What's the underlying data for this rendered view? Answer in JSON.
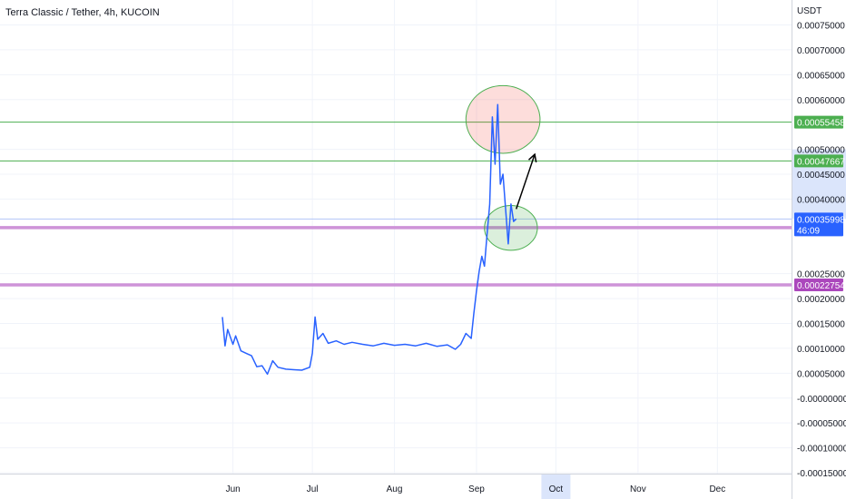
{
  "chart_data": {
    "type": "line",
    "title": "Terra Classic / Tether, 4h, KUCOIN",
    "currency_label": "USDT",
    "y_range": [
      -0.00015,
      0.00075
    ],
    "y_ticks": [
      "0.00075000",
      "0.00070000",
      "0.00065000",
      "0.00060000",
      "0.00050000",
      "0.00045000",
      "0.00040000",
      "0.00025000",
      "0.00020000",
      "0.00015000",
      "0.00010000",
      "0.00005000",
      "-0.00000000",
      "-0.00005000",
      "-0.00010000",
      "-0.00015000"
    ],
    "y_tick_values": [
      0.00075,
      0.0007,
      0.00065,
      0.0006,
      0.0005,
      0.00045,
      0.0004,
      0.00025,
      0.0002,
      0.00015,
      0.0001,
      5e-05,
      0,
      -5e-05,
      -0.0001,
      -0.00015
    ],
    "x_ticks": [
      "Jun",
      "Jul",
      "Aug",
      "Sep",
      "Oct",
      "Nov",
      "Dec"
    ],
    "x_tick_dates": [
      "2022-06-01",
      "2022-07-01",
      "2022-08-01",
      "2022-09-01",
      "2022-10-01",
      "2022-11-01",
      "2022-12-01"
    ],
    "x_range": [
      "2022-03-05",
      "2022-12-29"
    ],
    "x_highlight": "Oct",
    "series": [
      {
        "color": "#2962ff",
        "points": [
          [
            "2022-05-28",
            0.000163
          ],
          [
            "2022-05-29",
            0.000105
          ],
          [
            "2022-05-30",
            0.000138
          ],
          [
            "2022-06-01",
            0.000108
          ],
          [
            "2022-06-02",
            0.000125
          ],
          [
            "2022-06-04",
            9.5e-05
          ],
          [
            "2022-06-06",
            9e-05
          ],
          [
            "2022-06-08",
            8.5e-05
          ],
          [
            "2022-06-10",
            6.3e-05
          ],
          [
            "2022-06-12",
            6.5e-05
          ],
          [
            "2022-06-14",
            4.8e-05
          ],
          [
            "2022-06-16",
            7.5e-05
          ],
          [
            "2022-06-18",
            6.2e-05
          ],
          [
            "2022-06-21",
            5.8e-05
          ],
          [
            "2022-06-24",
            5.7e-05
          ],
          [
            "2022-06-27",
            5.6e-05
          ],
          [
            "2022-06-30",
            6.2e-05
          ],
          [
            "2022-07-01",
            9e-05
          ],
          [
            "2022-07-02",
            0.000163
          ],
          [
            "2022-07-03",
            0.000118
          ],
          [
            "2022-07-05",
            0.00013
          ],
          [
            "2022-07-07",
            0.00011
          ],
          [
            "2022-07-10",
            0.000115
          ],
          [
            "2022-07-13",
            0.000108
          ],
          [
            "2022-07-16",
            0.000112
          ],
          [
            "2022-07-20",
            0.000108
          ],
          [
            "2022-07-24",
            0.000105
          ],
          [
            "2022-07-28",
            0.00011
          ],
          [
            "2022-08-01",
            0.000106
          ],
          [
            "2022-08-05",
            0.000108
          ],
          [
            "2022-08-09",
            0.000105
          ],
          [
            "2022-08-13",
            0.00011
          ],
          [
            "2022-08-17",
            0.000104
          ],
          [
            "2022-08-21",
            0.000107
          ],
          [
            "2022-08-24",
            9.8e-05
          ],
          [
            "2022-08-26",
            0.000108
          ],
          [
            "2022-08-28",
            0.00013
          ],
          [
            "2022-08-30",
            0.00012
          ],
          [
            "2022-08-31",
            0.00017
          ],
          [
            "2022-09-01",
            0.000215
          ],
          [
            "2022-09-02",
            0.000255
          ],
          [
            "2022-09-03",
            0.000285
          ],
          [
            "2022-09-04",
            0.000265
          ],
          [
            "2022-09-05",
            0.00033
          ],
          [
            "2022-09-06",
            0.00039
          ],
          [
            "2022-09-07",
            0.000565
          ],
          [
            "2022-09-08",
            0.00047
          ],
          [
            "2022-09-09",
            0.00059
          ],
          [
            "2022-09-10",
            0.00043
          ],
          [
            "2022-09-11",
            0.00045
          ],
          [
            "2022-09-12",
            0.00038
          ],
          [
            "2022-09-13",
            0.00031
          ],
          [
            "2022-09-14",
            0.00039
          ],
          [
            "2022-09-15",
            0.000355
          ],
          [
            "2022-09-16",
            0.00036
          ]
        ]
      }
    ],
    "price_levels": [
      {
        "label": "0.00055458",
        "value": 0.00055458,
        "line_color": "#4caf50",
        "tag_color": "#4caf50"
      },
      {
        "label": "0.00047667",
        "value": 0.00047667,
        "line_color": "#4caf50",
        "tag_color": "#4caf50"
      },
      {
        "label": "0.00034264",
        "value": 0.00034264,
        "line_color": "#ce93d8",
        "tag_color": "#ab47bc",
        "thick": true
      },
      {
        "label": "0.00022754",
        "value": 0.00022754,
        "line_color": "#ce93d8",
        "tag_color": "#ab47bc",
        "thick": true
      }
    ],
    "last_price": {
      "label": "0.00035998",
      "countdown": "46:09",
      "value": 0.00035998,
      "color": "#2962ff"
    },
    "range_highlight": [
      0.00036,
      0.0005
    ],
    "annotations": [
      {
        "kind": "ellipse",
        "date": "2022-09-11",
        "value": 0.00056,
        "rx_days": 14,
        "ry_value": 6.8e-05,
        "fill": "rgba(244,67,54,0.18)",
        "stroke": "#4caf50"
      },
      {
        "kind": "ellipse",
        "date": "2022-09-14",
        "value": 0.000342,
        "rx_days": 10,
        "ry_value": 4.5e-05,
        "fill": "rgba(76,175,80,0.2)",
        "stroke": "#4caf50"
      },
      {
        "kind": "arrow",
        "from": [
          "2022-09-16",
          0.00038
        ],
        "to": [
          "2022-09-23",
          0.00049
        ],
        "color": "#000000"
      }
    ]
  }
}
